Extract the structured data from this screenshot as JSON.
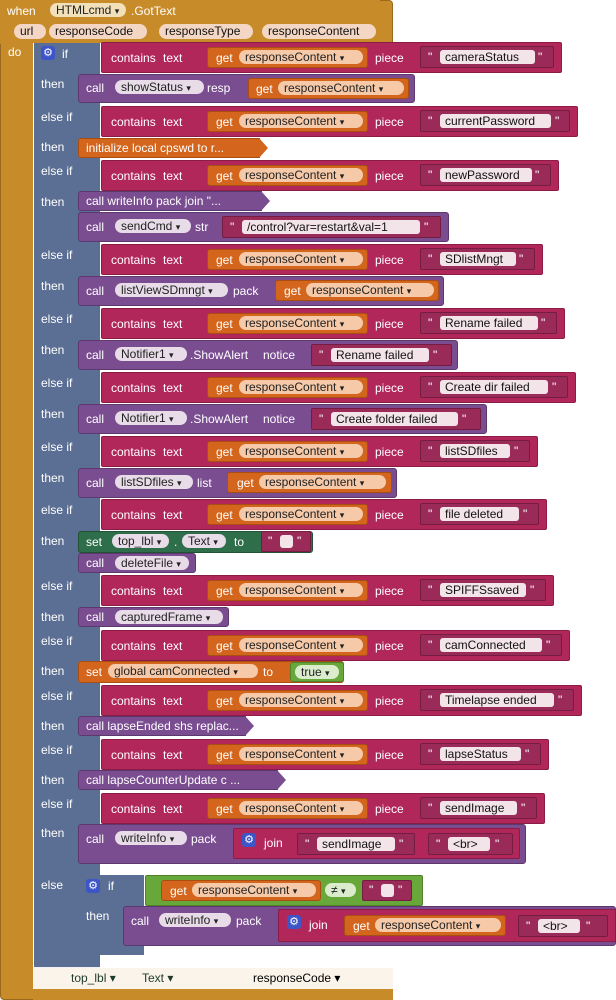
{
  "event": {
    "when_label": "when",
    "component": "HTMLcmd",
    "event_name": ".GotText",
    "params": [
      "url",
      "responseCode",
      "responseType",
      "responseContent"
    ],
    "do_label": "do"
  },
  "kw": {
    "if": "if",
    "else_if": "else if",
    "then": "then",
    "else": "else",
    "contains": "contains",
    "text": "text",
    "piece": "piece",
    "get": "get",
    "call": "call",
    "set": "set",
    "to": "to",
    "join": "join",
    "pack": "pack",
    "resp": "resp",
    "str": "str",
    "list": "list",
    "notice": "notice",
    "show_alert": ".ShowAlert",
    "dot": ".",
    "true": "true",
    "neq": "≠",
    "arrow": "▾"
  },
  "var_response_content": "responseContent",
  "pieces": {
    "p1": "cameraStatus",
    "p2": "currentPassword",
    "p3": "newPassword",
    "p4": "SDlistMngt",
    "p5": "Rename failed",
    "p6": "Create dir failed",
    "p7": "listSDfiles",
    "p8": "file deleted",
    "p9": "SPIFFSsaved",
    "p10": "camConnected",
    "p11": "Timelapse ended",
    "p12": "lapseStatus",
    "p13": "sendImage"
  },
  "actions": {
    "show_status": "showStatus",
    "init_local": "initialize local cpswd to r...",
    "write_info_join": "writeInfo pack join \"...",
    "send_cmd": "sendCmd",
    "send_cmd_str": "/control?var=restart&val=1",
    "list_view": "listViewSDmngt",
    "notifier": "Notifier1",
    "rename_failed": "Rename failed",
    "create_folder_failed": "Create folder failed",
    "list_sd_files": "listSDfiles",
    "top_lbl": "top_lbl",
    "text_prop": "Text",
    "delete_file": "deleteFile",
    "captured_frame": "capturedFrame",
    "global_cam": "global camConnected",
    "lapse_ended": "lapseEnded shs replac...",
    "lapse_counter": "lapseCounterUpdate c ...",
    "write_info": "writeInfo",
    "send_image": "sendImage",
    "br": "<br>"
  },
  "ghost": {
    "top_lbl": "top_lbl ▾",
    "text": "Text ▾",
    "response_code": "responseCode ▾"
  }
}
